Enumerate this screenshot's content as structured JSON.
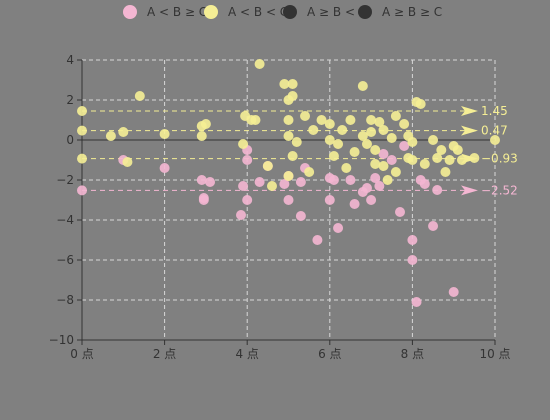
{
  "chart_data": {
    "type": "scatter",
    "title": "",
    "xlabel": "",
    "ylabel": "",
    "xlim": [
      0,
      10
    ],
    "ylim": [
      -10,
      4
    ],
    "x_ticks": [
      "0 点",
      "2 点",
      "4 点",
      "6 点",
      "8 点",
      "10 点"
    ],
    "y_ticks": [
      "4",
      "2",
      "0",
      "−2",
      "−4",
      "−6",
      "−8",
      "−10"
    ],
    "grid": true,
    "legend_position": "top",
    "series": [
      {
        "name": "A < B ≥ C",
        "color": "#f4b6d2",
        "points": [
          [
            0,
            -2.52
          ],
          [
            1.0,
            -1.0
          ],
          [
            2.0,
            -1.4
          ],
          [
            2.9,
            -2.0
          ],
          [
            3.1,
            -2.1
          ],
          [
            2.95,
            -2.9
          ],
          [
            2.95,
            -3.0
          ],
          [
            3.85,
            -3.75
          ],
          [
            3.9,
            -2.3
          ],
          [
            4.0,
            -1.0
          ],
          [
            4.0,
            -0.5
          ],
          [
            4.0,
            -3.0
          ],
          [
            4.3,
            -2.1
          ],
          [
            4.5,
            -1.3
          ],
          [
            4.9,
            -2.2
          ],
          [
            5.0,
            -1.8
          ],
          [
            5.0,
            -3.0
          ],
          [
            5.3,
            -2.1
          ],
          [
            5.3,
            -3.8
          ],
          [
            5.4,
            -1.4
          ],
          [
            5.7,
            -5.0
          ],
          [
            6.0,
            -3.0
          ],
          [
            6.0,
            -1.9
          ],
          [
            6.1,
            -2.0
          ],
          [
            6.2,
            -4.4
          ],
          [
            6.5,
            -2.0
          ],
          [
            6.6,
            -3.2
          ],
          [
            6.8,
            -2.6
          ],
          [
            6.9,
            -2.4
          ],
          [
            7.0,
            -3.0
          ],
          [
            7.1,
            -1.9
          ],
          [
            7.2,
            -2.3
          ],
          [
            7.3,
            -0.7
          ],
          [
            7.5,
            -1.0
          ],
          [
            7.7,
            -3.6
          ],
          [
            7.8,
            -0.3
          ],
          [
            8.0,
            -5.0
          ],
          [
            8.0,
            -6.0
          ],
          [
            8.1,
            -8.1
          ],
          [
            8.2,
            -2.0
          ],
          [
            8.3,
            -2.2
          ],
          [
            8.5,
            -4.3
          ],
          [
            8.6,
            -2.5
          ],
          [
            9.0,
            -7.6
          ]
        ]
      },
      {
        "name": "A < B < C",
        "color": "#f5ee95",
        "points": [
          [
            0,
            1.45
          ],
          [
            0,
            0.47
          ],
          [
            0,
            -0.93
          ],
          [
            0.7,
            0.2
          ],
          [
            1.0,
            0.4
          ],
          [
            1.1,
            -1.1
          ],
          [
            1.4,
            2.2
          ],
          [
            2.0,
            0.3
          ],
          [
            2.9,
            0.7
          ],
          [
            3.0,
            0.8
          ],
          [
            2.9,
            0.2
          ],
          [
            3.9,
            -0.2
          ],
          [
            3.95,
            1.2
          ],
          [
            4.1,
            1.0
          ],
          [
            4.2,
            1.0
          ],
          [
            4.3,
            3.8
          ],
          [
            4.5,
            -1.3
          ],
          [
            4.6,
            -2.3
          ],
          [
            4.9,
            2.8
          ],
          [
            5.0,
            2.0
          ],
          [
            5.1,
            2.8
          ],
          [
            5.1,
            2.2
          ],
          [
            5.0,
            1.0
          ],
          [
            5.0,
            0.2
          ],
          [
            5.1,
            -0.8
          ],
          [
            5.0,
            -1.8
          ],
          [
            5.2,
            -0.1
          ],
          [
            5.4,
            1.2
          ],
          [
            5.5,
            -1.6
          ],
          [
            5.6,
            0.5
          ],
          [
            5.8,
            1.0
          ],
          [
            6.0,
            0.8
          ],
          [
            6.0,
            0
          ],
          [
            6.1,
            -0.8
          ],
          [
            6.2,
            -0.2
          ],
          [
            6.3,
            0.5
          ],
          [
            6.4,
            -1.4
          ],
          [
            6.5,
            1.0
          ],
          [
            6.6,
            -0.6
          ],
          [
            6.8,
            2.7
          ],
          [
            6.8,
            0.2
          ],
          [
            6.9,
            -0.2
          ],
          [
            7.0,
            1.0
          ],
          [
            7.0,
            0.4
          ],
          [
            7.1,
            -0.5
          ],
          [
            7.1,
            -1.2
          ],
          [
            7.2,
            0.9
          ],
          [
            7.3,
            0.5
          ],
          [
            7.3,
            -1.3
          ],
          [
            7.4,
            -2.0
          ],
          [
            7.5,
            0.1
          ],
          [
            7.6,
            1.2
          ],
          [
            7.6,
            -1.6
          ],
          [
            7.8,
            0.8
          ],
          [
            7.9,
            0.2
          ],
          [
            7.9,
            -0.9
          ],
          [
            8.0,
            -0.1
          ],
          [
            8.0,
            -1.0
          ],
          [
            8.1,
            1.9
          ],
          [
            8.2,
            1.8
          ],
          [
            8.3,
            -1.2
          ],
          [
            8.5,
            0
          ],
          [
            8.6,
            -0.9
          ],
          [
            8.7,
            -0.5
          ],
          [
            8.8,
            -1.6
          ],
          [
            8.9,
            -1.0
          ],
          [
            9.0,
            -0.3
          ],
          [
            9.1,
            -0.5
          ],
          [
            9.2,
            -1.0
          ],
          [
            9.5,
            -0.9
          ],
          [
            10.0,
            0.0
          ]
        ]
      },
      {
        "name": "A ≥ B < C",
        "color": "#333333",
        "points": []
      },
      {
        "name": "A ≥ B ≥ C",
        "color": "#333333",
        "points": []
      }
    ],
    "mark_lines": [
      {
        "value": 1.45,
        "label": "1.45",
        "color": "#f5ee95"
      },
      {
        "value": 0.47,
        "label": "0.47",
        "color": "#f5ee95"
      },
      {
        "value": -0.93,
        "label": "−0.93",
        "color": "#f5ee95"
      },
      {
        "value": -2.52,
        "label": "−2.52",
        "color": "#f4b6d2"
      }
    ]
  }
}
